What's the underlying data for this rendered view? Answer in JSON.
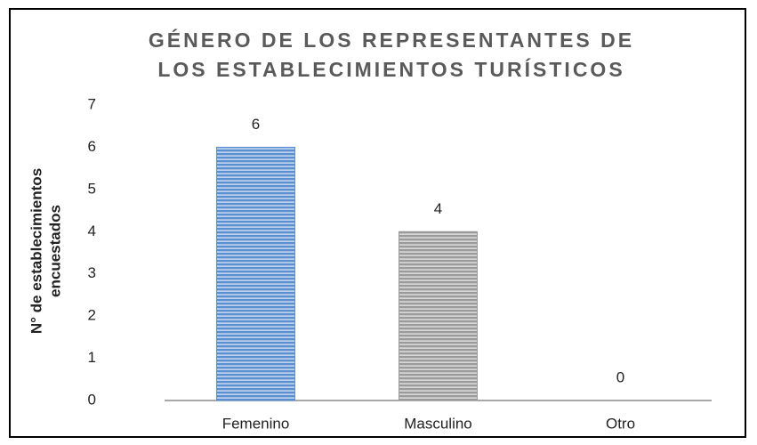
{
  "chart_data": {
    "type": "bar",
    "title": [
      "GÉNERO DE LOS REPRESENTANTES DE",
      "LOS ESTABLECIMIENTOS TURÍSTICOS"
    ],
    "ylabel": [
      "N° de establecimientos",
      "encuestados"
    ],
    "categories": [
      "Femenino",
      "Masculino",
      "Otro"
    ],
    "values": [
      6,
      4,
      0
    ],
    "colors": [
      "#5b8fd0",
      "#9a9a9a",
      "#9a9a9a"
    ],
    "ylim": [
      0,
      7
    ],
    "yticks": [
      0,
      1,
      2,
      3,
      4,
      5,
      6,
      7
    ],
    "grid": false
  }
}
